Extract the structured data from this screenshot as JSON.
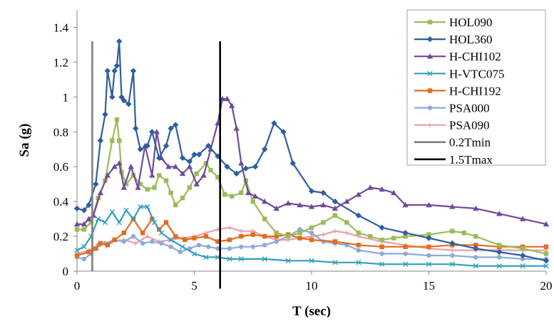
{
  "chart_data": {
    "type": "line",
    "title": "",
    "xlabel": "T (sec)",
    "ylabel": "Sa (g)",
    "xlim": [
      0,
      20
    ],
    "ylim": [
      0,
      1.5
    ],
    "xticks": [
      0,
      5,
      10,
      15,
      20
    ],
    "yticks": [
      0,
      0.2,
      0.4,
      0.6,
      0.8,
      1,
      1.2,
      1.4
    ],
    "xtick_labels": [
      "0",
      "5",
      "10",
      "15",
      "20"
    ],
    "ytick_labels": [
      "0",
      "0.2",
      "0.4",
      "0.6",
      "0.8",
      "1",
      "1.2",
      "1.4"
    ],
    "grid": "none",
    "legend_position": "top-right",
    "series": [
      {
        "name": "HOL090",
        "color": "#9BBB59",
        "marker": "square",
        "x": [
          0,
          0.3,
          0.6,
          0.9,
          1.2,
          1.5,
          1.7,
          1.8,
          1.9,
          2.1,
          2.4,
          2.7,
          3.0,
          3.3,
          3.5,
          3.8,
          4.0,
          4.2,
          4.5,
          4.8,
          5.1,
          5.5,
          5.7,
          6.0,
          6.3,
          6.6,
          7.0,
          7.2,
          7.5,
          8.0,
          8.5,
          9.0,
          9.5,
          10.0,
          10.5,
          11.0,
          11.5,
          12.0,
          12.5,
          13.0,
          13.5,
          14.0,
          15.0,
          16.0,
          16.5,
          17.0,
          18.0,
          19.0,
          20.0
        ],
        "y": [
          0.24,
          0.24,
          0.28,
          0.42,
          0.52,
          0.75,
          0.87,
          0.75,
          0.57,
          0.5,
          0.55,
          0.5,
          0.47,
          0.48,
          0.55,
          0.52,
          0.45,
          0.38,
          0.42,
          0.48,
          0.56,
          0.62,
          0.58,
          0.54,
          0.44,
          0.43,
          0.45,
          0.52,
          0.4,
          0.3,
          0.22,
          0.2,
          0.22,
          0.25,
          0.28,
          0.32,
          0.28,
          0.22,
          0.2,
          0.18,
          0.19,
          0.2,
          0.21,
          0.23,
          0.22,
          0.2,
          0.15,
          0.13,
          0.1
        ]
      },
      {
        "name": "HOL360",
        "color": "#2E5F9E",
        "marker": "diamond",
        "x": [
          0,
          0.3,
          0.5,
          0.8,
          1.0,
          1.2,
          1.3,
          1.5,
          1.6,
          1.7,
          1.8,
          1.9,
          2.0,
          2.2,
          2.4,
          2.5,
          2.7,
          3.0,
          3.2,
          3.5,
          3.8,
          4.0,
          4.2,
          4.5,
          4.8,
          5.0,
          5.2,
          5.6,
          6.0,
          6.4,
          6.8,
          7.2,
          7.6,
          8.0,
          8.4,
          8.8,
          9.2,
          10.0,
          10.5,
          11.0,
          12.0,
          13.0,
          14.0,
          15.0,
          16.0,
          17.0,
          18.0,
          19.0,
          20.0
        ],
        "y": [
          0.36,
          0.35,
          0.38,
          0.5,
          0.75,
          0.9,
          1.15,
          1.0,
          1.15,
          1.18,
          1.32,
          1.0,
          0.98,
          0.96,
          1.15,
          0.82,
          0.7,
          0.72,
          0.8,
          0.65,
          0.72,
          0.82,
          0.84,
          0.65,
          0.63,
          0.67,
          0.67,
          0.72,
          0.66,
          0.6,
          0.56,
          0.59,
          0.6,
          0.7,
          0.85,
          0.8,
          0.62,
          0.46,
          0.45,
          0.4,
          0.32,
          0.25,
          0.22,
          0.19,
          0.16,
          0.13,
          0.11,
          0.09,
          0.06
        ]
      },
      {
        "name": "H-CHI102",
        "color": "#704A9A",
        "marker": "triangle",
        "x": [
          0,
          0.3,
          0.5,
          0.7,
          1.0,
          1.3,
          1.6,
          1.8,
          2.0,
          2.3,
          2.6,
          2.9,
          3.2,
          3.4,
          3.6,
          3.9,
          4.2,
          4.5,
          4.8,
          5.1,
          5.4,
          5.7,
          6.0,
          6.2,
          6.4,
          6.6,
          6.8,
          7.0,
          7.3,
          7.6,
          8.0,
          8.5,
          9.0,
          9.5,
          10.0,
          10.5,
          11.0,
          11.5,
          12.0,
          12.5,
          13.0,
          13.5,
          14.0,
          15.0,
          16.0,
          17.0,
          18.0,
          19.0,
          20.0
        ],
        "y": [
          0.27,
          0.27,
          0.3,
          0.32,
          0.45,
          0.55,
          0.6,
          0.62,
          0.48,
          0.6,
          0.48,
          0.72,
          0.55,
          0.8,
          0.65,
          0.6,
          0.6,
          0.56,
          0.6,
          0.5,
          0.55,
          0.7,
          0.85,
          0.99,
          0.99,
          0.95,
          0.82,
          0.62,
          0.45,
          0.43,
          0.4,
          0.36,
          0.39,
          0.38,
          0.37,
          0.38,
          0.36,
          0.4,
          0.44,
          0.48,
          0.47,
          0.45,
          0.38,
          0.38,
          0.37,
          0.36,
          0.33,
          0.3,
          0.27
        ]
      },
      {
        "name": "H-VTC075",
        "color": "#31A0B8",
        "marker": "x",
        "x": [
          0,
          0.3,
          0.6,
          0.9,
          1.2,
          1.5,
          1.8,
          2.1,
          2.4,
          2.7,
          3.0,
          3.3,
          3.6,
          4.0,
          4.5,
          5.0,
          5.5,
          6.0,
          6.5,
          7.0,
          8.0,
          9.0,
          10.0,
          11.0,
          12.0,
          13.0,
          14.0,
          15.0,
          16.0,
          17.0,
          18.0,
          19.0,
          20.0
        ],
        "y": [
          0.12,
          0.14,
          0.2,
          0.3,
          0.28,
          0.34,
          0.28,
          0.35,
          0.3,
          0.37,
          0.37,
          0.28,
          0.22,
          0.18,
          0.14,
          0.1,
          0.08,
          0.08,
          0.07,
          0.07,
          0.07,
          0.06,
          0.06,
          0.05,
          0.05,
          0.04,
          0.04,
          0.04,
          0.04,
          0.03,
          0.03,
          0.03,
          0.03
        ]
      },
      {
        "name": "H-CHI192",
        "color": "#E36C1E",
        "marker": "square",
        "x": [
          0,
          0.5,
          0.8,
          1.0,
          1.3,
          1.6,
          2.0,
          2.4,
          2.8,
          3.2,
          3.5,
          3.8,
          4.2,
          4.6,
          5.0,
          5.5,
          6.0,
          6.5,
          7.0,
          7.5,
          8.0,
          8.5,
          9.0,
          9.5,
          10.0,
          11.0,
          12.0,
          13.0,
          14.0,
          15.0,
          16.0,
          17.0,
          18.0,
          19.0,
          20.0
        ],
        "y": [
          0.09,
          0.11,
          0.13,
          0.16,
          0.15,
          0.18,
          0.22,
          0.3,
          0.22,
          0.3,
          0.24,
          0.28,
          0.2,
          0.18,
          0.19,
          0.2,
          0.17,
          0.18,
          0.2,
          0.21,
          0.2,
          0.2,
          0.21,
          0.19,
          0.18,
          0.17,
          0.15,
          0.14,
          0.14,
          0.14,
          0.15,
          0.15,
          0.14,
          0.14,
          0.14
        ]
      },
      {
        "name": "PSA000",
        "color": "#8EA9DB",
        "marker": "circle",
        "x": [
          0,
          0.3,
          0.6,
          0.9,
          1.2,
          1.6,
          2.0,
          2.4,
          2.8,
          3.2,
          3.6,
          4.0,
          4.4,
          4.8,
          5.2,
          5.6,
          6.0,
          6.5,
          7.0,
          7.5,
          8.0,
          8.5,
          9.0,
          9.5,
          10.0,
          10.5,
          11.0,
          11.5,
          12.0,
          13.0,
          14.0,
          15.0,
          16.0,
          17.0,
          18.0,
          19.0,
          20.0
        ],
        "y": [
          0.08,
          0.07,
          0.1,
          0.15,
          0.16,
          0.18,
          0.17,
          0.2,
          0.16,
          0.17,
          0.16,
          0.14,
          0.11,
          0.13,
          0.15,
          0.14,
          0.13,
          0.13,
          0.14,
          0.14,
          0.15,
          0.17,
          0.2,
          0.24,
          0.22,
          0.17,
          0.16,
          0.15,
          0.12,
          0.1,
          0.1,
          0.09,
          0.09,
          0.08,
          0.08,
          0.07,
          0.07
        ]
      },
      {
        "name": "PSA090",
        "color": "#E8A0A8",
        "marker": "plus",
        "x": [
          0,
          0.5,
          1.0,
          1.5,
          2.0,
          2.5,
          3.0,
          3.5,
          4.0,
          4.5,
          5.0,
          5.5,
          6.0,
          6.5,
          7.0,
          7.5,
          8.0,
          8.5,
          9.0,
          9.5,
          10.0,
          10.5,
          11.0,
          11.5,
          12.0,
          13.0,
          14.0,
          15.0,
          16.0,
          17.0,
          18.0,
          19.0,
          20.0
        ],
        "y": [
          0.1,
          0.12,
          0.15,
          0.17,
          0.18,
          0.16,
          0.2,
          0.17,
          0.18,
          0.19,
          0.2,
          0.22,
          0.24,
          0.25,
          0.23,
          0.23,
          0.2,
          0.18,
          0.18,
          0.19,
          0.2,
          0.21,
          0.23,
          0.22,
          0.2,
          0.17,
          0.15,
          0.13,
          0.12,
          0.12,
          0.12,
          0.12,
          0.12
        ]
      },
      {
        "name": "0.2Tmin",
        "color": "#7F7F7F",
        "marker": "none",
        "x": [
          0.65,
          0.65
        ],
        "y": [
          0,
          1.32
        ]
      },
      {
        "name": "1.5Tmax",
        "color": "#000000",
        "marker": "none",
        "x": [
          6.1,
          6.1
        ],
        "y": [
          -0.1,
          1.32
        ]
      }
    ]
  }
}
